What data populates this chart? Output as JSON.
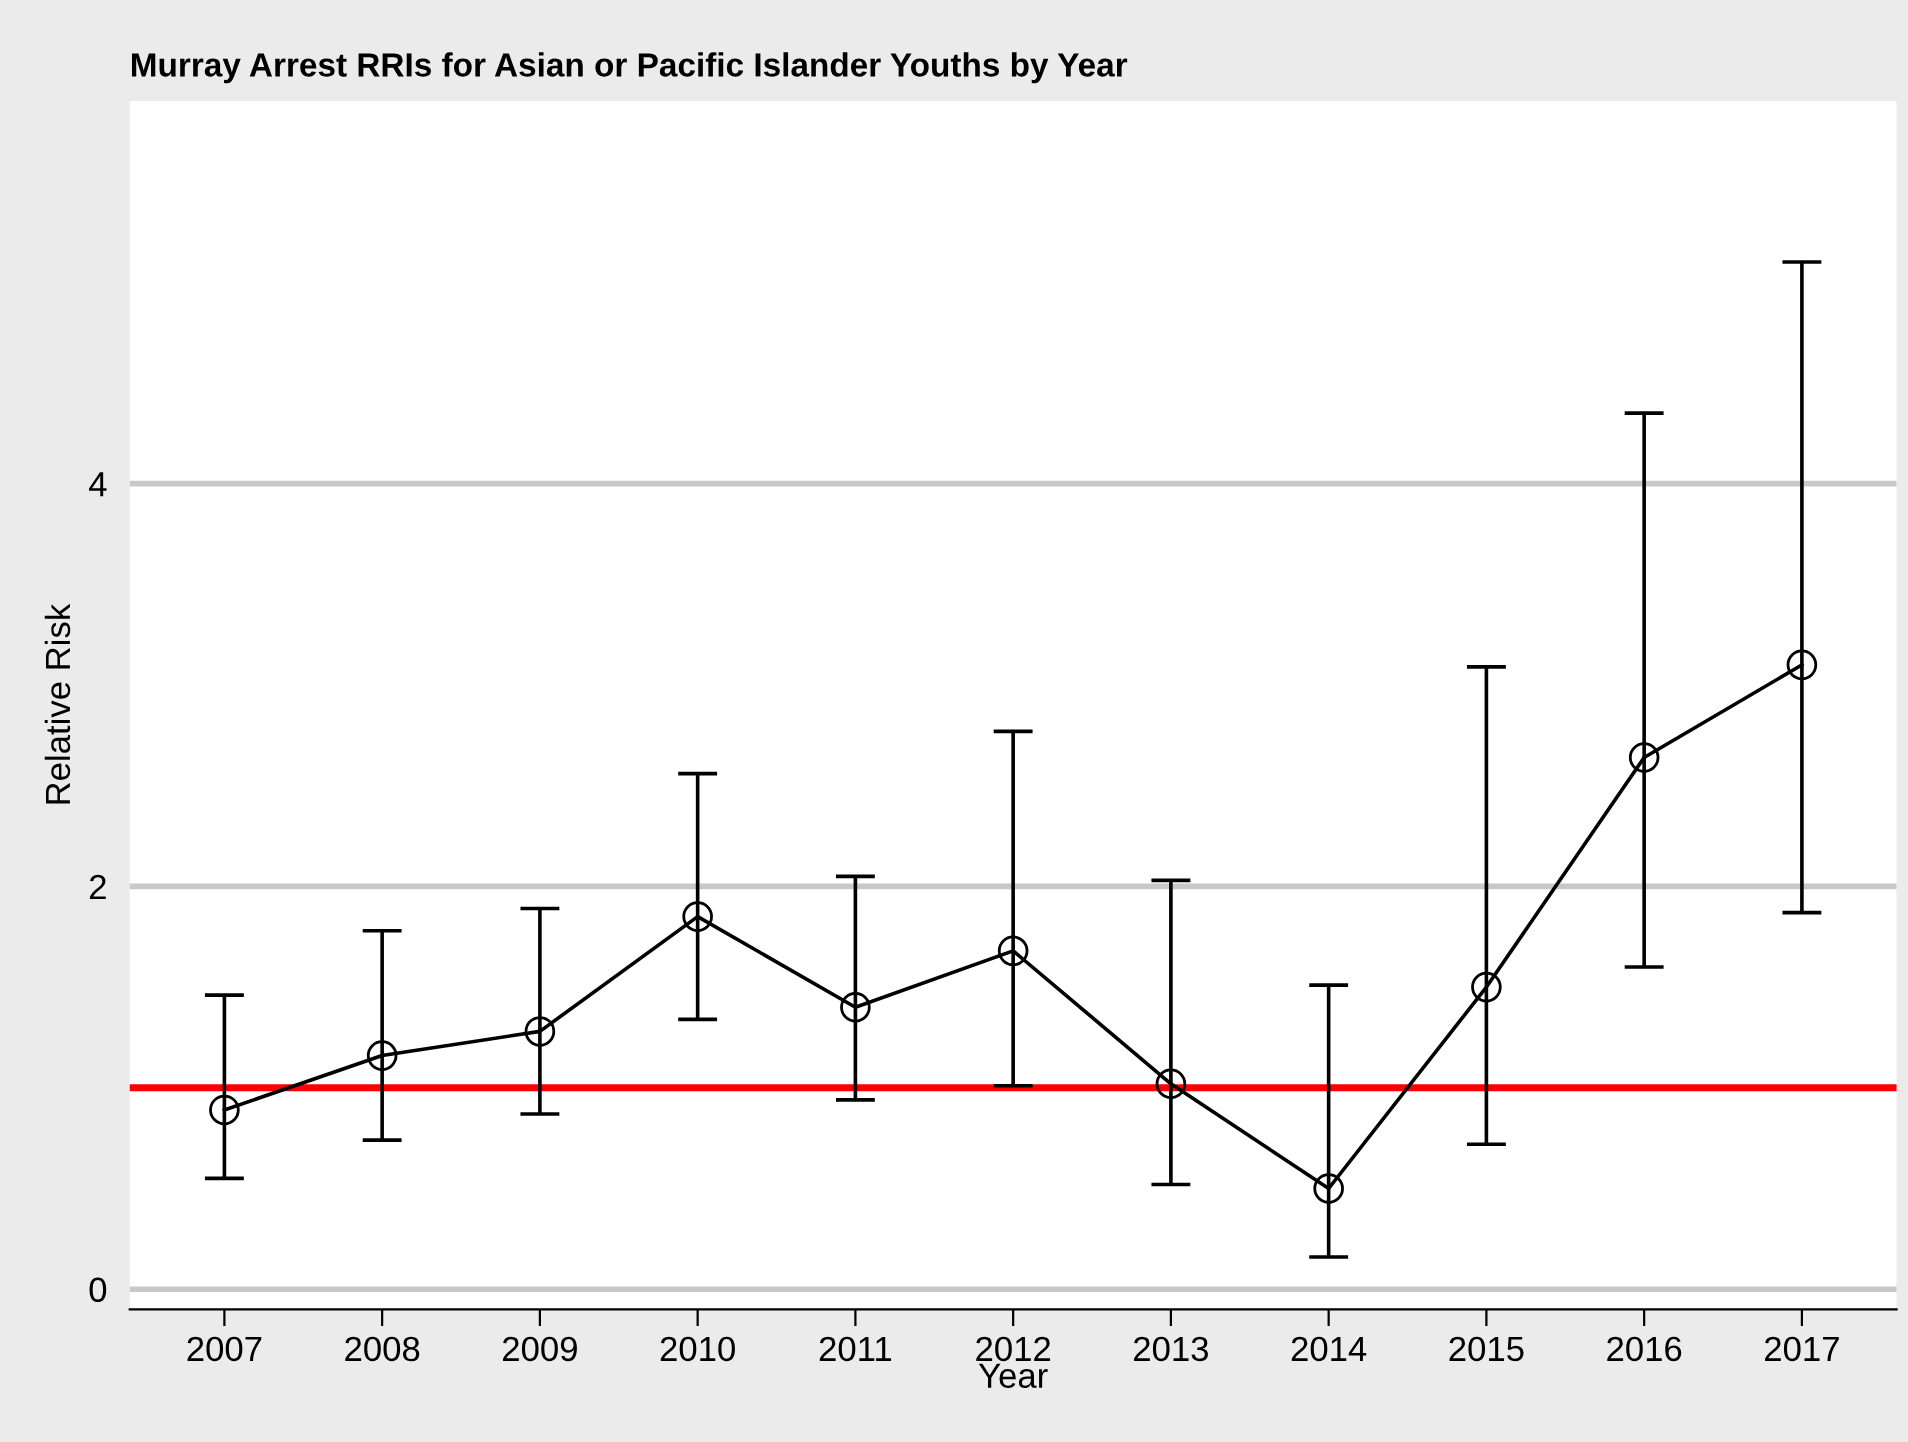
{
  "chart_data": {
    "type": "line",
    "title": "Murray Arrest RRIs for Asian or Pacific Islander Youths by Year",
    "xlabel": "Year",
    "ylabel": "Relative Risk",
    "x": [
      2007,
      2008,
      2009,
      2010,
      2011,
      2012,
      2013,
      2014,
      2015,
      2016,
      2017
    ],
    "series": [
      {
        "color": "#000000",
        "values": [
          0.89,
          1.16,
          1.28,
          1.85,
          1.4,
          1.68,
          1.02,
          0.5,
          1.5,
          2.64,
          3.1
        ],
        "errors": [
          [
            0.55,
            1.46
          ],
          [
            0.74,
            1.78
          ],
          [
            0.87,
            1.89
          ],
          [
            1.34,
            2.56
          ],
          [
            0.94,
            2.05
          ],
          [
            1.01,
            2.77
          ],
          [
            0.52,
            2.03
          ],
          [
            0.16,
            1.51
          ],
          [
            0.72,
            3.09
          ],
          [
            1.6,
            4.35
          ],
          [
            1.87,
            5.1
          ]
        ]
      }
    ],
    "marker": "circle",
    "line_style": "solid",
    "grid": "y",
    "xlim": [
      2006.4,
      2017.6
    ],
    "xticks": [
      2007,
      2008,
      2009,
      2010,
      2011,
      2012,
      2013,
      2014,
      2015,
      2016,
      2017
    ],
    "ylim": [
      -0.1,
      5.9
    ],
    "yticks": [
      0,
      2,
      4
    ],
    "ref_lines": [
      {
        "axis": "y",
        "value": 1,
        "color": "#ff0000",
        "line_style": "solid"
      }
    ]
  }
}
